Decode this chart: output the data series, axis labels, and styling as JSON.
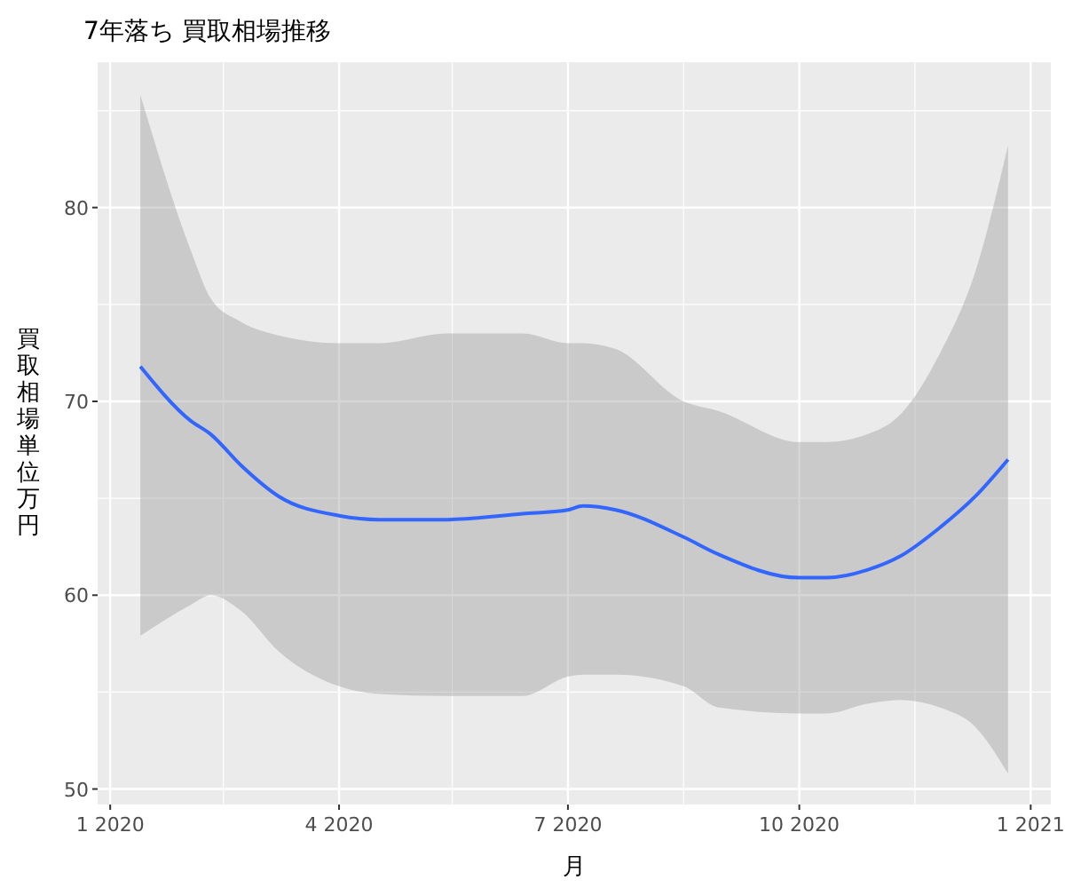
{
  "chart_data": {
    "type": "line",
    "title": "7年落ち 買取相場推移",
    "xlabel": "月",
    "ylabel": "買取相場単位万円",
    "xlim": [
      "2019-12-27",
      "2021-01-09"
    ],
    "ylim": [
      49.2,
      87.5
    ],
    "xticks": [
      {
        "value": "2020-01-01",
        "label": "1 2020"
      },
      {
        "value": "2020-02-15",
        "label": null
      },
      {
        "value": "2020-04-01",
        "label": "4 2020"
      },
      {
        "value": "2020-05-16",
        "label": null
      },
      {
        "value": "2020-07-01",
        "label": "7 2020"
      },
      {
        "value": "2020-08-16",
        "label": null
      },
      {
        "value": "2020-10-01",
        "label": "10 2020"
      },
      {
        "value": "2020-11-16",
        "label": null
      },
      {
        "value": "2021-01-01",
        "label": "1 2021"
      }
    ],
    "yticks": [
      50,
      {
        "value": 55,
        "label": null
      },
      60,
      {
        "value": 65,
        "label": null
      },
      70,
      {
        "value": 75,
        "label": null
      },
      80,
      {
        "value": 85,
        "label": null
      }
    ],
    "grid": true,
    "marker": "none",
    "line_style": "solid",
    "x": [
      "2020-01-13",
      "2020-02-02",
      "2020-02-10",
      "2020-02-22",
      "2020-03-08",
      "2020-04-01",
      "2020-04-17",
      "2020-05-14",
      "2020-06-13",
      "2020-07-01",
      "2020-07-07",
      "2020-07-20",
      "2020-08-16",
      "2020-08-30",
      "2020-10-01",
      "2020-10-12",
      "2020-10-28",
      "2020-11-10",
      "2020-11-26",
      "2020-12-10",
      "2020-12-23"
    ],
    "series": [
      {
        "color": "#3366ff",
        "values": [
          71.8,
          69.0,
          68.3,
          66.7,
          65.1,
          64.1,
          63.9,
          63.9,
          64.2,
          64.4,
          64.6,
          64.4,
          63.0,
          62.1,
          60.9,
          60.9,
          61.3,
          62.0,
          63.5,
          65.1,
          67.0
        ],
        "lower": [
          57.9,
          59.5,
          60.0,
          59.2,
          57.1,
          55.3,
          54.9,
          54.8,
          54.8,
          55.8,
          55.9,
          55.9,
          55.3,
          54.2,
          53.9,
          53.9,
          54.4,
          54.6,
          54.2,
          53.2,
          50.8
        ],
        "upper": [
          85.8,
          77.8,
          75.3,
          74.1,
          73.4,
          73.0,
          73.0,
          73.5,
          73.5,
          73.0,
          73.0,
          72.7,
          70.0,
          69.5,
          67.9,
          67.9,
          68.3,
          69.3,
          72.5,
          76.7,
          83.2
        ]
      }
    ]
  }
}
